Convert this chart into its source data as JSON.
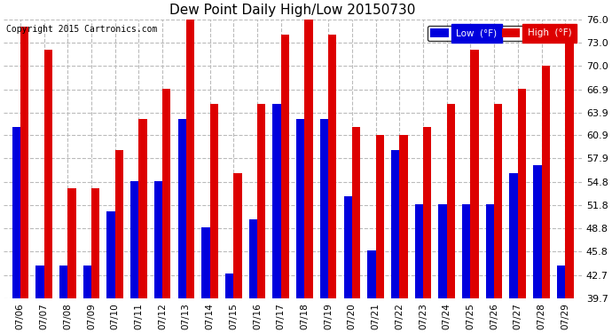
{
  "title": "Dew Point Daily High/Low 20150730",
  "copyright": "Copyright 2015 Cartronics.com",
  "dates": [
    "07/06",
    "07/07",
    "07/08",
    "07/09",
    "07/10",
    "07/11",
    "07/12",
    "07/13",
    "07/14",
    "07/15",
    "07/16",
    "07/17",
    "07/18",
    "07/19",
    "07/20",
    "07/21",
    "07/22",
    "07/23",
    "07/24",
    "07/25",
    "07/26",
    "07/27",
    "07/28",
    "07/29"
  ],
  "low": [
    62,
    44,
    44,
    44,
    51,
    55,
    55,
    63,
    49,
    43,
    50,
    65,
    63,
    63,
    53,
    46,
    59,
    52,
    52,
    52,
    52,
    56,
    57,
    44
  ],
  "high": [
    75,
    72,
    54,
    54,
    59,
    63,
    67,
    77,
    65,
    56,
    65,
    74,
    76,
    74,
    62,
    61,
    61,
    62,
    65,
    72,
    65,
    67,
    70,
    73
  ],
  "low_color": "#0000dd",
  "high_color": "#dd0000",
  "bg_color": "#ffffff",
  "grid_color": "#bbbbbb",
  "yticks": [
    39.7,
    42.7,
    45.8,
    48.8,
    51.8,
    54.8,
    57.9,
    60.9,
    63.9,
    66.9,
    70.0,
    73.0,
    76.0
  ],
  "ymin": 39.7,
  "ymax": 76.0,
  "legend_low_label": "Low  (°F)",
  "legend_high_label": "High  (°F)",
  "legend_low_bg": "#0000dd",
  "legend_high_bg": "#dd0000",
  "legend_text_color": "#ffffff"
}
